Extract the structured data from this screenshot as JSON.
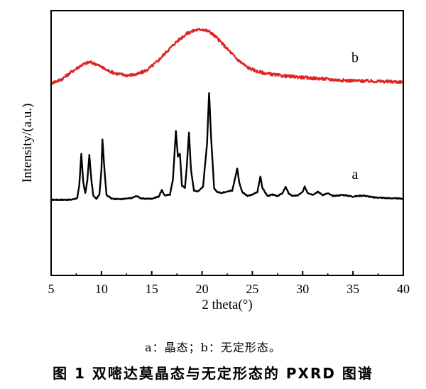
{
  "chart_data": {
    "type": "line",
    "xlabel": "2 theta(°)",
    "ylabel": "Intensity/(a.u.)",
    "xlim": [
      5,
      40
    ],
    "ylim": [
      0,
      100
    ],
    "x_ticks": [
      5,
      10,
      15,
      20,
      25,
      30,
      35,
      40
    ],
    "y_ticks": [],
    "grid": false,
    "legend": "none",
    "series": [
      {
        "name": "a",
        "color": "#000000",
        "points": [
          [
            5.0,
            28.6
          ],
          [
            6.0,
            28.6
          ],
          [
            7.0,
            28.6
          ],
          [
            7.6,
            29.2
          ],
          [
            7.8,
            34.0
          ],
          [
            8.0,
            46.0
          ],
          [
            8.2,
            35.0
          ],
          [
            8.4,
            31.0
          ],
          [
            8.6,
            36.0
          ],
          [
            8.8,
            45.5
          ],
          [
            9.0,
            36.0
          ],
          [
            9.2,
            30.0
          ],
          [
            9.5,
            29.0
          ],
          [
            9.8,
            30.5
          ],
          [
            10.0,
            40.0
          ],
          [
            10.1,
            51.5
          ],
          [
            10.3,
            40.0
          ],
          [
            10.5,
            30.5
          ],
          [
            11.0,
            29.0
          ],
          [
            12.0,
            28.8
          ],
          [
            13.0,
            29.2
          ],
          [
            13.5,
            30.0
          ],
          [
            14.0,
            29.0
          ],
          [
            15.0,
            29.0
          ],
          [
            15.7,
            29.8
          ],
          [
            16.0,
            32.2
          ],
          [
            16.3,
            30.2
          ],
          [
            16.8,
            30.5
          ],
          [
            17.1,
            36.0
          ],
          [
            17.4,
            54.5
          ],
          [
            17.6,
            45.0
          ],
          [
            17.8,
            46.0
          ],
          [
            18.0,
            34.0
          ],
          [
            18.3,
            33.0
          ],
          [
            18.5,
            42.0
          ],
          [
            18.7,
            54.0
          ],
          [
            18.9,
            40.0
          ],
          [
            19.2,
            32.0
          ],
          [
            19.6,
            31.8
          ],
          [
            20.1,
            33.5
          ],
          [
            20.5,
            50.0
          ],
          [
            20.7,
            69.0
          ],
          [
            20.9,
            52.0
          ],
          [
            21.2,
            33.0
          ],
          [
            21.5,
            31.5
          ],
          [
            22.0,
            31.2
          ],
          [
            22.5,
            31.8
          ],
          [
            23.0,
            32.0
          ],
          [
            23.3,
            37.0
          ],
          [
            23.5,
            40.5
          ],
          [
            23.7,
            35.0
          ],
          [
            24.0,
            31.5
          ],
          [
            24.5,
            30.0
          ],
          [
            25.0,
            30.5
          ],
          [
            25.5,
            31.5
          ],
          [
            25.8,
            37.5
          ],
          [
            26.0,
            33.0
          ],
          [
            26.5,
            30.0
          ],
          [
            27.0,
            30.5
          ],
          [
            27.5,
            30.0
          ],
          [
            28.0,
            31.0
          ],
          [
            28.3,
            33.5
          ],
          [
            28.6,
            31.0
          ],
          [
            29.0,
            30.0
          ],
          [
            29.5,
            30.2
          ],
          [
            30.0,
            31.5
          ],
          [
            30.2,
            33.5
          ],
          [
            30.5,
            31.2
          ],
          [
            31.0,
            30.5
          ],
          [
            31.5,
            31.6
          ],
          [
            32.0,
            30.4
          ],
          [
            32.5,
            31.0
          ],
          [
            33.0,
            30.0
          ],
          [
            34.0,
            30.4
          ],
          [
            35.0,
            29.8
          ],
          [
            36.0,
            30.2
          ],
          [
            37.0,
            29.5
          ],
          [
            38.0,
            29.3
          ],
          [
            39.0,
            29.1
          ],
          [
            40.0,
            29.0
          ]
        ]
      },
      {
        "name": "b",
        "color": "#e02424",
        "points": [
          [
            5.0,
            72.6
          ],
          [
            6.0,
            74.0
          ],
          [
            7.0,
            76.8
          ],
          [
            8.0,
            79.4
          ],
          [
            8.8,
            80.6
          ],
          [
            9.5,
            79.8
          ],
          [
            10.5,
            77.6
          ],
          [
            11.5,
            76.2
          ],
          [
            12.5,
            75.6
          ],
          [
            13.5,
            75.9
          ],
          [
            14.5,
            77.5
          ],
          [
            15.5,
            80.6
          ],
          [
            16.5,
            84.6
          ],
          [
            17.5,
            88.4
          ],
          [
            18.5,
            91.4
          ],
          [
            19.3,
            92.6
          ],
          [
            20.0,
            93.0
          ],
          [
            20.8,
            92.0
          ],
          [
            21.5,
            89.6
          ],
          [
            22.5,
            85.6
          ],
          [
            23.5,
            81.6
          ],
          [
            24.5,
            78.6
          ],
          [
            25.5,
            77.0
          ],
          [
            26.5,
            76.2
          ],
          [
            27.5,
            75.6
          ],
          [
            28.5,
            75.2
          ],
          [
            29.5,
            75.0
          ],
          [
            30.5,
            74.6
          ],
          [
            31.5,
            74.4
          ],
          [
            32.5,
            74.1
          ],
          [
            33.5,
            73.8
          ],
          [
            34.5,
            73.6
          ],
          [
            35.5,
            73.5
          ],
          [
            36.5,
            73.4
          ],
          [
            37.5,
            73.3
          ],
          [
            38.5,
            73.2
          ],
          [
            39.5,
            73.1
          ],
          [
            40.0,
            73.1
          ]
        ]
      }
    ],
    "annotations": [
      {
        "text": "b",
        "x": 35.2,
        "y": 80.5,
        "series": "b"
      },
      {
        "text": "a",
        "x": 35.2,
        "y": 36.5,
        "series": "a"
      }
    ]
  },
  "caption": {
    "note": "a：晶态；b：无定形态。",
    "title": "图 1   双嘧达莫晶态与无定形态的 PXRD 图谱"
  }
}
